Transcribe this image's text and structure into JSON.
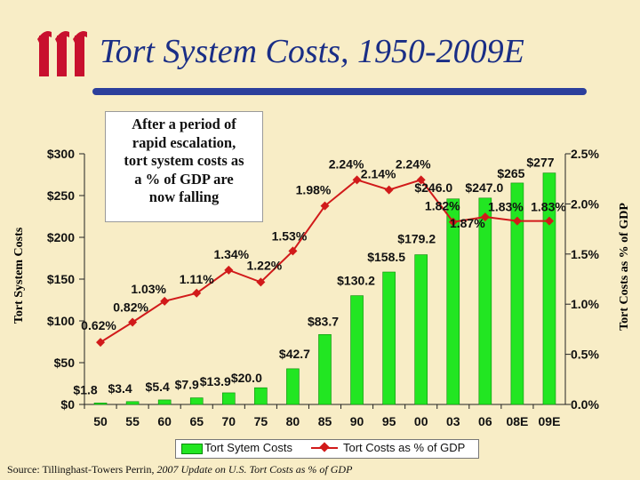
{
  "title": "Tort System Costs, 1950-2009E",
  "logo": {
    "text": "iii",
    "color": "#c8102e"
  },
  "callout": {
    "lines": [
      "After a period of",
      "rapid escalation,",
      "tort system costs as",
      "a % of GDP are",
      "now falling"
    ]
  },
  "source": {
    "prefix": "Source: Tillinghast-Towers Perrin, ",
    "title": "2007 Update on U.S. Tort Costs as % of GDP"
  },
  "colors": {
    "bar": "#22e622",
    "bar_edge": "#0a8a0a",
    "line": "#d11a1a",
    "title": "#1a2e86",
    "background": "#f8edc6"
  },
  "chart_data": {
    "type": "bar",
    "categories": [
      "50",
      "55",
      "60",
      "65",
      "70",
      "75",
      "80",
      "85",
      "90",
      "95",
      "00",
      "03",
      "06",
      "08E",
      "09E"
    ],
    "series": [
      {
        "name": "Tort Sytem Costs",
        "axis": "left",
        "values": [
          1.8,
          3.4,
          5.4,
          7.9,
          13.9,
          20.0,
          42.7,
          83.7,
          130.2,
          158.5,
          179.2,
          246.0,
          247.0,
          265,
          277
        ],
        "labels": [
          "$1.8",
          "$3.4",
          "$5.4",
          "$7.9",
          "$13.9",
          "$20.0",
          "$42.7",
          "$83.7",
          "$130.2",
          "$158.5",
          "$179.2",
          "$246.0",
          "$247.0",
          "$265",
          "$277"
        ]
      },
      {
        "name": "Tort Costs as % of GDP",
        "type": "line",
        "axis": "right",
        "values": [
          0.62,
          0.82,
          1.03,
          1.11,
          1.34,
          1.22,
          1.53,
          1.98,
          2.24,
          2.14,
          2.24,
          1.82,
          1.87,
          1.83,
          1.83
        ],
        "labels": [
          "0.62%",
          "0.82%",
          "1.03%",
          "1.11%",
          "1.34%",
          "1.22%",
          "1.53%",
          "1.98%",
          "2.24%",
          "2.14%",
          "2.24%",
          "1.82%",
          "1.87%",
          "1.83%",
          "1.83%"
        ]
      }
    ],
    "ylabel": "Tort System Costs",
    "ylabel_right": "Tort Costs as % of GDP",
    "ylim": [
      0,
      300
    ],
    "ylim_right": [
      0,
      2.5
    ],
    "yticks": [
      "$0",
      "$50",
      "$100",
      "$150",
      "$200",
      "$250",
      "$300"
    ],
    "yticks_right": [
      "0.0%",
      "0.5%",
      "1.0%",
      "1.5%",
      "2.0%",
      "2.5%"
    ],
    "legend": [
      "Tort Sytem Costs",
      "Tort Costs as % of GDP"
    ],
    "legend_position": "bottom",
    "grid": false
  }
}
